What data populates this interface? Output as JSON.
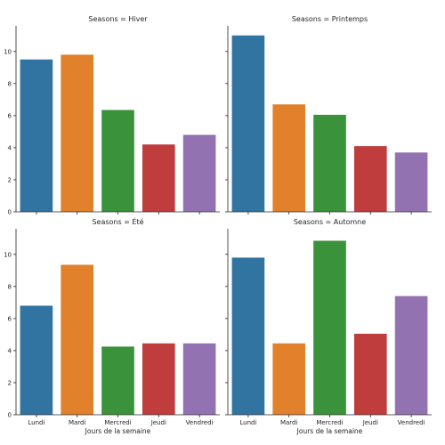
{
  "chart_data": {
    "type": "bar",
    "layout": "facet-grid 2x2",
    "categories": [
      "Lundi",
      "Mardi",
      "Mercredi",
      "Jeudi",
      "Vendredi"
    ],
    "colors": [
      "#3274a1",
      "#e1812c",
      "#3a923a",
      "#c03d3e",
      "#9372b2"
    ],
    "ylim": [
      0,
      11.6
    ],
    "yticks": [
      "0",
      "2",
      "4",
      "6",
      "8",
      "10"
    ],
    "xlabel": "Jours de la semaine",
    "ylabel": "",
    "sharex": true,
    "sharey": true,
    "grid": false,
    "panels": [
      {
        "title": "Seasons = Hiver",
        "values": [
          9.5,
          9.8,
          6.35,
          4.2,
          4.8
        ]
      },
      {
        "title": "Seasons = Printemps",
        "values": [
          11.0,
          6.7,
          6.05,
          4.1,
          3.7
        ]
      },
      {
        "title": "Seasons = Été",
        "values": [
          6.8,
          9.35,
          4.25,
          4.45,
          4.45
        ]
      },
      {
        "title": "Seasons = Automne",
        "values": [
          9.8,
          4.45,
          10.85,
          5.05,
          7.4
        ]
      }
    ]
  }
}
